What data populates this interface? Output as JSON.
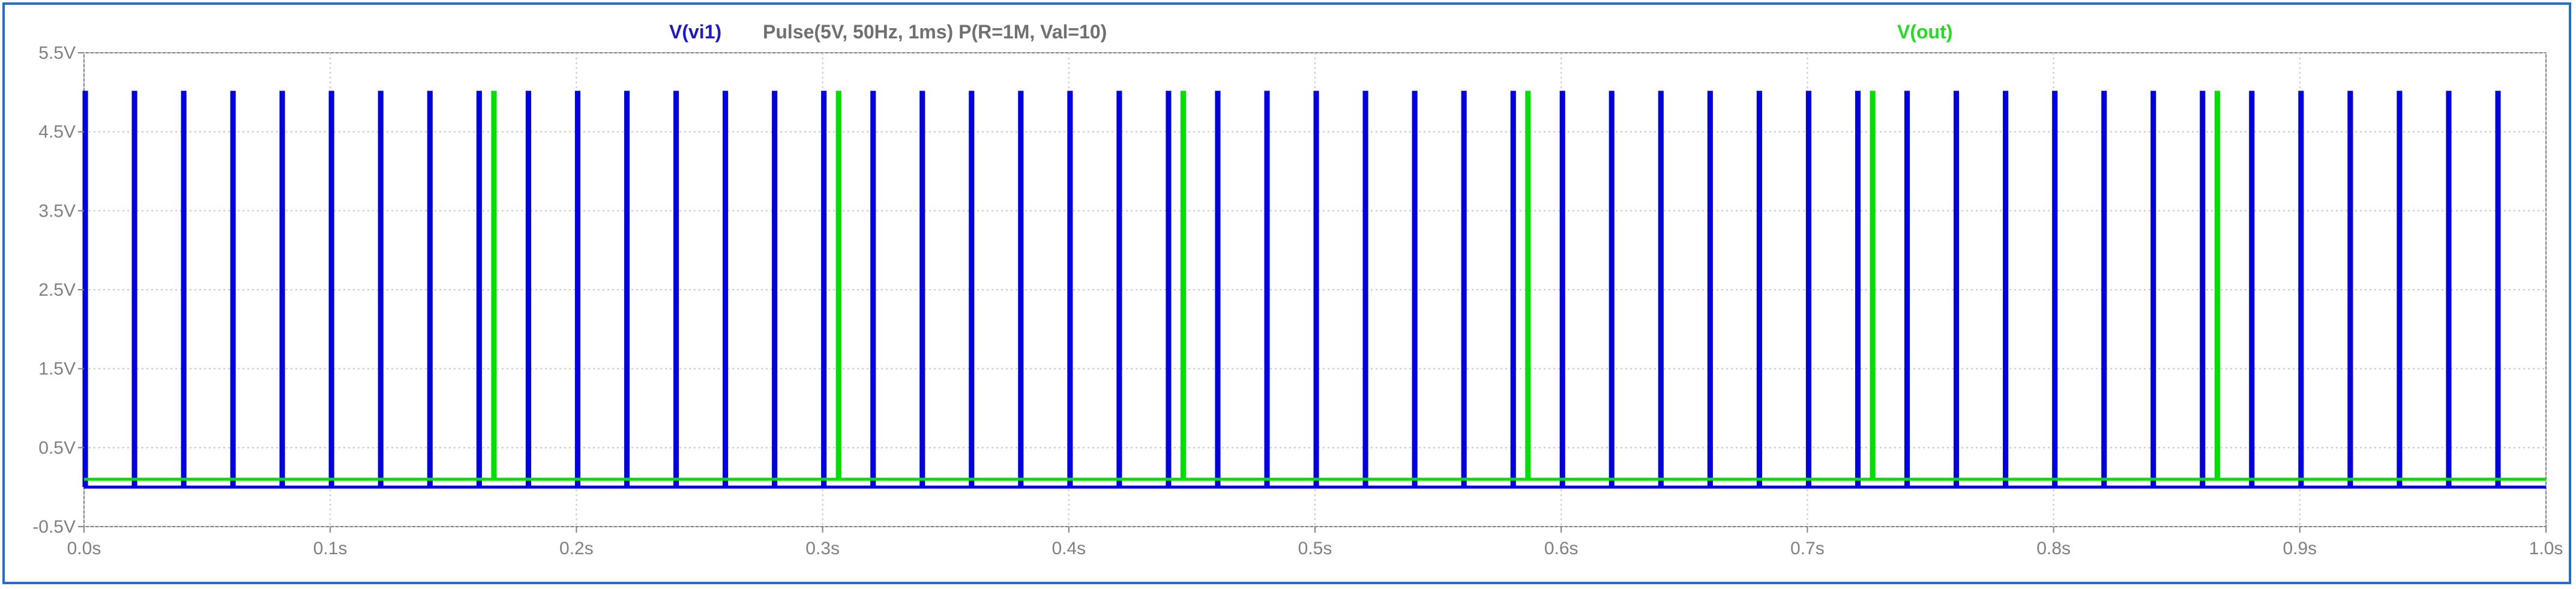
{
  "chart_data": {
    "type": "line",
    "title_left": "V(vi1)",
    "title_center": "Pulse(5V, 50Hz, 1ms) P(R=1M, Val=10)",
    "title_right": "V(out)",
    "xlabel": "",
    "ylabel": "",
    "xlim": [
      0.0,
      1.0
    ],
    "ylim": [
      -0.5,
      5.5
    ],
    "grid": true,
    "x_ticks": [
      0.0,
      0.1,
      0.2,
      0.3,
      0.4,
      0.5,
      0.6,
      0.7,
      0.8,
      0.9,
      1.0
    ],
    "x_tick_labels": [
      "0.0s",
      "0.1s",
      "0.2s",
      "0.3s",
      "0.4s",
      "0.5s",
      "0.6s",
      "0.7s",
      "0.8s",
      "0.9s",
      "1.0s"
    ],
    "y_ticks": [
      -0.5,
      0.5,
      1.5,
      2.5,
      3.5,
      4.5,
      5.5
    ],
    "y_tick_labels": [
      "-0.5V",
      "0.5V",
      "1.5V",
      "2.5V",
      "3.5V",
      "4.5V",
      "5.5V"
    ],
    "series": [
      {
        "name": "V(vi1)",
        "color": "#0000e0",
        "baseline": 0.0,
        "high": 5.0,
        "pulse_width": 0.001,
        "pulse_starts": [
          0.0,
          0.02,
          0.04,
          0.06,
          0.08,
          0.1,
          0.12,
          0.14,
          0.16,
          0.18,
          0.2,
          0.22,
          0.24,
          0.26,
          0.28,
          0.3,
          0.32,
          0.34,
          0.36,
          0.38,
          0.4,
          0.42,
          0.44,
          0.46,
          0.48,
          0.5,
          0.52,
          0.54,
          0.56,
          0.58,
          0.6,
          0.62,
          0.64,
          0.66,
          0.68,
          0.7,
          0.72,
          0.74,
          0.76,
          0.78,
          0.8,
          0.82,
          0.84,
          0.86,
          0.88,
          0.9,
          0.92,
          0.94,
          0.96,
          0.98
        ]
      },
      {
        "name": "V(out)",
        "color": "#00e000",
        "baseline": 0.1,
        "high": 5.0,
        "pulse_width": 0.001,
        "pulse_starts": [
          0.166,
          0.306,
          0.446,
          0.586,
          0.726,
          0.866
        ]
      }
    ]
  }
}
